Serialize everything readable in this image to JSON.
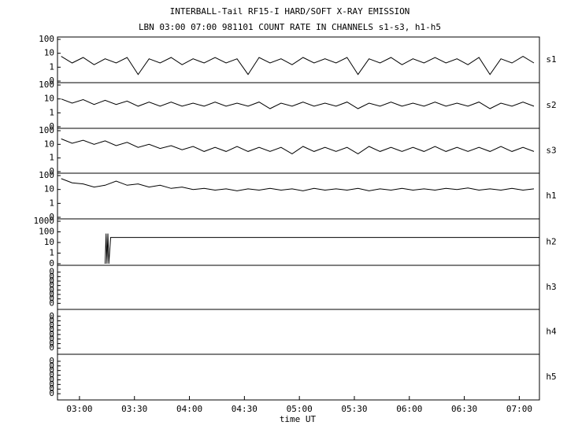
{
  "chart_data": [
    {
      "type": "line",
      "title": "INTERBALL-Tail RF15-I HARD/SOFT X-RAY EMISSION",
      "subtitle": "LBN 03:00 07:00 981101  COUNT RATE IN CHANNELS s1-s3, h1-h5",
      "ylabel": "s1",
      "log": true,
      "ylim": [
        0.1,
        100
      ],
      "yticks": [
        {
          "value": 0.1,
          "label": "0"
        },
        1,
        10,
        100
      ],
      "xlim": [
        168,
        431
      ],
      "color": "#000000",
      "x": [
        170,
        176,
        182,
        188,
        194,
        200,
        206,
        212,
        218,
        224,
        230,
        236,
        242,
        248,
        254,
        260,
        266,
        272,
        278,
        284,
        290,
        296,
        302,
        308,
        314,
        320,
        326,
        332,
        338,
        344,
        350,
        356,
        362,
        368,
        374,
        380,
        386,
        392,
        398,
        404,
        410,
        416,
        422,
        428
      ],
      "values": [
        6,
        2,
        5,
        1.5,
        4,
        2,
        5,
        0.3,
        4,
        2,
        5,
        1.5,
        4,
        2,
        5,
        2,
        4,
        0.3,
        5,
        2,
        4,
        1.5,
        5,
        2,
        4,
        2,
        5,
        0.3,
        4,
        2,
        5,
        1.5,
        4,
        2,
        5,
        2,
        4,
        1.5,
        5,
        0.3,
        4,
        2,
        6,
        2
      ]
    },
    {
      "type": "line",
      "ylabel": "s2",
      "log": true,
      "ylim": [
        0.1,
        100
      ],
      "yticks": [
        {
          "value": 0.1,
          "label": "0"
        },
        1,
        10,
        100
      ],
      "xlim": [
        168,
        431
      ],
      "color": "#000000",
      "x": [
        170,
        176,
        182,
        188,
        194,
        200,
        206,
        212,
        218,
        224,
        230,
        236,
        242,
        248,
        254,
        260,
        266,
        272,
        278,
        284,
        290,
        296,
        302,
        308,
        314,
        320,
        326,
        332,
        338,
        344,
        350,
        356,
        362,
        368,
        374,
        380,
        386,
        392,
        398,
        404,
        410,
        416,
        422,
        428
      ],
      "values": [
        10,
        5,
        9,
        4,
        8,
        4,
        7,
        3,
        6,
        3,
        6,
        3,
        5,
        3,
        6,
        3,
        5,
        3,
        6,
        2,
        5,
        3,
        6,
        3,
        5,
        3,
        6,
        2,
        5,
        3,
        6,
        3,
        5,
        3,
        6,
        3,
        5,
        3,
        6,
        2,
        5,
        3,
        6,
        3
      ]
    },
    {
      "type": "line",
      "ylabel": "s3",
      "log": true,
      "ylim": [
        0.1,
        100
      ],
      "yticks": [
        {
          "value": 0.1,
          "label": "0"
        },
        1,
        10,
        100
      ],
      "xlim": [
        168,
        431
      ],
      "color": "#000000",
      "x": [
        170,
        176,
        182,
        188,
        194,
        200,
        206,
        212,
        218,
        224,
        230,
        236,
        242,
        248,
        254,
        260,
        266,
        272,
        278,
        284,
        290,
        296,
        302,
        308,
        314,
        320,
        326,
        332,
        338,
        344,
        350,
        356,
        362,
        368,
        374,
        380,
        386,
        392,
        398,
        404,
        410,
        416,
        422,
        428
      ],
      "values": [
        25,
        12,
        20,
        10,
        18,
        8,
        14,
        6,
        10,
        5,
        8,
        4,
        7,
        3,
        6,
        3,
        7,
        3,
        6,
        3,
        6,
        2,
        7,
        3,
        6,
        3,
        6,
        2,
        7,
        3,
        6,
        3,
        6,
        3,
        7,
        3,
        6,
        3,
        6,
        3,
        7,
        3,
        6,
        3
      ]
    },
    {
      "type": "line",
      "ylabel": "h1",
      "log": true,
      "ylim": [
        0.1,
        100
      ],
      "yticks": [
        {
          "value": 0.1,
          "label": "0"
        },
        1,
        10,
        100
      ],
      "xlim": [
        168,
        431
      ],
      "color": "#000000",
      "x": [
        170,
        176,
        182,
        188,
        194,
        200,
        206,
        212,
        218,
        224,
        230,
        236,
        242,
        248,
        254,
        260,
        266,
        272,
        278,
        284,
        290,
        296,
        302,
        308,
        314,
        320,
        326,
        332,
        338,
        344,
        350,
        356,
        362,
        368,
        374,
        380,
        386,
        392,
        398,
        404,
        410,
        416,
        422,
        428
      ],
      "values": [
        60,
        30,
        25,
        15,
        20,
        40,
        20,
        25,
        15,
        20,
        12,
        15,
        10,
        12,
        9,
        11,
        8,
        11,
        9,
        12,
        9,
        11,
        8,
        12,
        9,
        11,
        9,
        12,
        8,
        11,
        9,
        12,
        9,
        11,
        9,
        12,
        10,
        13,
        9,
        11,
        9,
        12,
        9,
        11
      ]
    },
    {
      "type": "line",
      "ylabel": "h2",
      "log": true,
      "ylim": [
        0.1,
        1000
      ],
      "yticks": [
        {
          "value": 0.1,
          "label": "0"
        },
        1,
        10,
        100,
        1000
      ],
      "xlim": [
        168,
        431
      ],
      "color": "#000000",
      "x": [
        194,
        194.5,
        195,
        195.5,
        196,
        197,
        431
      ],
      "values": [
        0.1,
        70,
        0.1,
        70,
        0.1,
        30,
        30
      ]
    },
    {
      "type": "line",
      "ylabel": "h3",
      "ylim": [
        0,
        0.009
      ],
      "xlim": [
        168,
        431
      ],
      "yticks": [
        {
          "value": 0.001,
          "label": "0"
        },
        {
          "value": 0.002,
          "label": "0"
        },
        {
          "value": 0.003,
          "label": "0"
        },
        {
          "value": 0.004,
          "label": "0"
        },
        {
          "value": 0.005,
          "label": "0"
        },
        {
          "value": 0.006,
          "label": "0"
        },
        {
          "value": 0.007,
          "label": "0"
        },
        {
          "value": 0.008,
          "label": "0"
        }
      ]
    },
    {
      "type": "line",
      "ylabel": "h4",
      "ylim": [
        0,
        0.009
      ],
      "xlim": [
        168,
        431
      ],
      "yticks": [
        {
          "value": 0.001,
          "label": "0"
        },
        {
          "value": 0.002,
          "label": "0"
        },
        {
          "value": 0.003,
          "label": "0"
        },
        {
          "value": 0.004,
          "label": "0"
        },
        {
          "value": 0.005,
          "label": "0"
        },
        {
          "value": 0.006,
          "label": "0"
        },
        {
          "value": 0.007,
          "label": "0"
        },
        {
          "value": 0.008,
          "label": "0"
        }
      ]
    },
    {
      "type": "line",
      "ylabel": "h5",
      "ylim": [
        0,
        0.009
      ],
      "xlim": [
        168,
        431
      ],
      "yticks": [
        {
          "value": 0.001,
          "label": "0"
        },
        {
          "value": 0.002,
          "label": "0"
        },
        {
          "value": 0.003,
          "label": "0"
        },
        {
          "value": 0.004,
          "label": "0"
        },
        {
          "value": 0.005,
          "label": "0"
        },
        {
          "value": 0.006,
          "label": "0"
        },
        {
          "value": 0.007,
          "label": "0"
        },
        {
          "value": 0.008,
          "label": "0"
        }
      ],
      "xlabel": "time UT",
      "xticks": [
        {
          "value": 180,
          "label": "03:00"
        },
        {
          "value": 210,
          "label": "03:30"
        },
        {
          "value": 240,
          "label": "04:00"
        },
        {
          "value": 270,
          "label": "04:30"
        },
        {
          "value": 300,
          "label": "05:00"
        },
        {
          "value": 330,
          "label": "05:30"
        },
        {
          "value": 360,
          "label": "06:00"
        },
        {
          "value": 390,
          "label": "06:30"
        },
        {
          "value": 420,
          "label": "07:00"
        }
      ]
    }
  ]
}
